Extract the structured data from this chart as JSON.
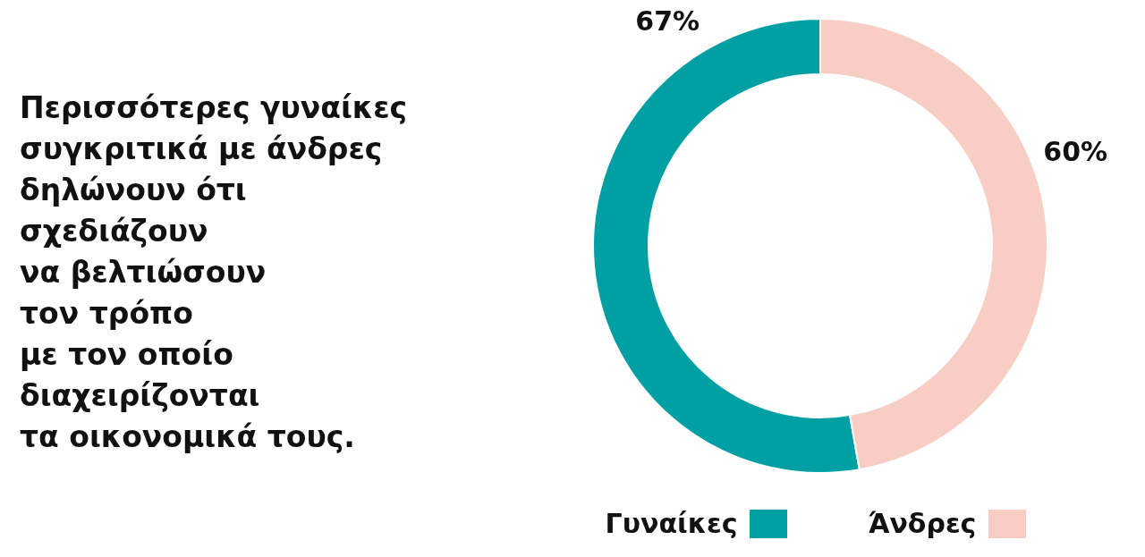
{
  "chart_data": {
    "type": "donut",
    "title": "Περισσότερες γυναίκες\nσυγκριτικά με άνδρες\nδηλώνουν ότι\nσχεδιάζουν\nνα βελτιώσουν\nτον τρόπο\nμε τον οποίο\nδιαχειρίζονται\nτα οικονομικά τους.",
    "categories": [
      "Γυναίκες",
      "Άνδρες"
    ],
    "values": [
      67,
      60
    ],
    "colors": [
      "#009fa3",
      "#f7cdc4"
    ],
    "value_labels": [
      "67%",
      "60%"
    ],
    "legend": "bottom"
  }
}
